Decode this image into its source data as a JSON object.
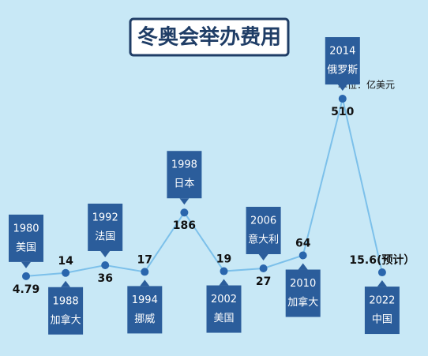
{
  "chart_data": {
    "type": "line",
    "title": "冬奥会举办费用",
    "unit": "单位：亿美元",
    "categories": [
      "1980",
      "1988",
      "1992",
      "1994",
      "1998",
      "2002",
      "2006",
      "2010",
      "2014",
      "2022"
    ],
    "countries": [
      "美国",
      "加拿大",
      "法国",
      "挪威",
      "日本",
      "美国",
      "意大利",
      "加拿大",
      "俄罗斯",
      "中国"
    ],
    "values": [
      4.79,
      14,
      36,
      17,
      186,
      19,
      27,
      64,
      510,
      15.6
    ],
    "value_labels": [
      "4.79",
      "14",
      "36",
      "17",
      "186",
      "19",
      "27",
      "64",
      "510",
      "15.6(预计）"
    ],
    "color": "#7cc0ea",
    "marker_color": "#2a66ad",
    "box_color": "#2b5d9b"
  }
}
